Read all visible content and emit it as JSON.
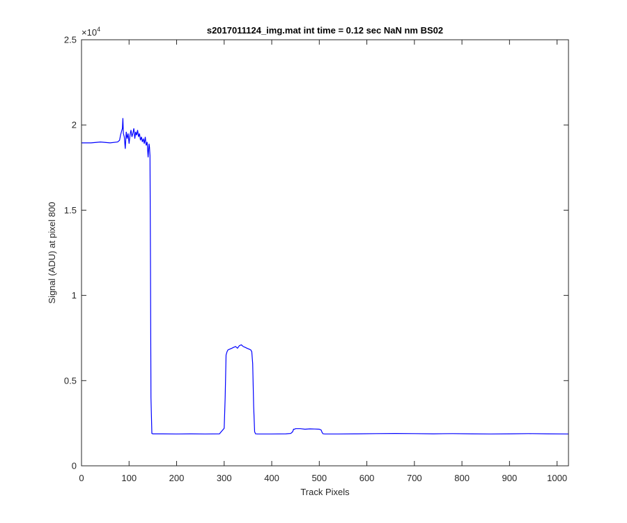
{
  "chart_data": {
    "type": "line",
    "title": "s2017011124_img.mat int time = 0.12 sec  NaN nm BS02",
    "xlabel": "Track Pixels",
    "ylabel": "Signal (ADU) at pixel 800",
    "xlim": [
      0,
      1024
    ],
    "ylim": [
      0,
      25000
    ],
    "exponent_label": "×10",
    "exponent_power": "4",
    "x_ticks": [
      0,
      100,
      200,
      300,
      400,
      500,
      600,
      700,
      800,
      900,
      1000
    ],
    "x_tick_labels": [
      "0",
      "100",
      "200",
      "300",
      "400",
      "500",
      "600",
      "700",
      "800",
      "900",
      "1000"
    ],
    "y_ticks": [
      0,
      5000,
      10000,
      15000,
      20000,
      25000
    ],
    "y_tick_labels": [
      "0",
      "0.5",
      "1",
      "1.5",
      "2",
      "2.5"
    ],
    "grid": false,
    "line_color": "#0000ff",
    "series": [
      {
        "x": [
          0,
          20,
          40,
          60,
          76,
          80,
          82,
          84,
          86,
          87,
          88,
          90,
          92,
          94,
          96,
          98,
          100,
          102,
          104,
          106,
          108,
          110,
          112,
          114,
          116,
          118,
          120,
          122,
          124,
          126,
          128,
          130,
          132,
          134,
          136,
          138,
          140,
          142,
          143,
          144,
          145,
          146,
          148,
          150,
          170,
          200,
          230,
          260,
          290,
          300,
          302,
          304,
          306,
          308,
          312,
          316,
          320,
          324,
          328,
          332,
          336,
          340,
          344,
          348,
          352,
          356,
          358,
          360,
          362,
          364,
          366,
          370,
          400,
          430,
          440,
          444,
          446,
          448,
          450,
          460,
          470,
          480,
          490,
          500,
          504,
          506,
          508,
          512,
          540,
          580,
          620,
          660,
          700,
          740,
          780,
          820,
          860,
          900,
          940,
          980,
          1024
        ],
        "y": [
          18950,
          18950,
          19000,
          18950,
          19000,
          19100,
          19400,
          19600,
          19800,
          20400,
          19500,
          19300,
          18600,
          19600,
          19200,
          19500,
          18900,
          19400,
          19700,
          19300,
          19500,
          19800,
          19200,
          19600,
          19400,
          19700,
          19300,
          19500,
          19100,
          19300,
          19000,
          19200,
          18900,
          19300,
          18800,
          19000,
          18100,
          18900,
          18700,
          18200,
          12000,
          4000,
          1900,
          1880,
          1880,
          1870,
          1880,
          1870,
          1880,
          2200,
          4000,
          6500,
          6700,
          6800,
          6850,
          6900,
          6950,
          7000,
          6900,
          7050,
          7100,
          7000,
          6950,
          6900,
          6850,
          6800,
          6700,
          6000,
          3500,
          2000,
          1880,
          1870,
          1870,
          1880,
          1900,
          2000,
          2150,
          2150,
          2180,
          2180,
          2150,
          2170,
          2160,
          2150,
          2100,
          1950,
          1880,
          1870,
          1870,
          1880,
          1890,
          1900,
          1890,
          1880,
          1890,
          1880,
          1870,
          1880,
          1890,
          1880,
          1870
        ]
      }
    ]
  }
}
